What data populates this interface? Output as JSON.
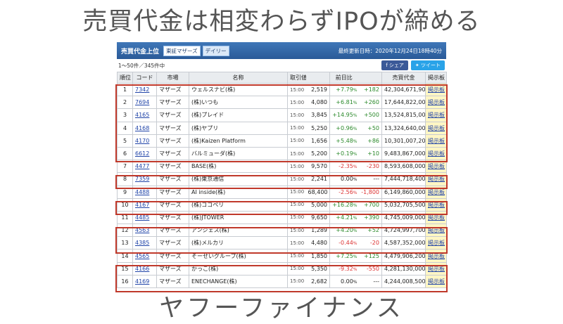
{
  "headline": "売買代金は相変わらずIPOが締める",
  "footer": "ヤフーファイナンス",
  "panel": {
    "title": "売買代金上位",
    "tabs": [
      "東証マザーズ",
      "デイリー"
    ],
    "updated": "最終更新日時：2020年12月24日18時40分",
    "count": "1～50件／345件中",
    "share_facebook": "シェア",
    "share_twitter": "ツイート"
  },
  "table": {
    "headers": [
      "順位",
      "コード",
      "市場",
      "名称",
      "取引値",
      "",
      "前日比",
      "",
      "売買代金",
      "掲示板"
    ],
    "rows": [
      {
        "rank": "1",
        "code": "7342",
        "market": "マザーズ",
        "name": "ウェルスナビ(株)",
        "time": "15:00",
        "price": "2,519",
        "pct": "+7.79",
        "diff": "+182",
        "value": "42,304,671,900",
        "board": "掲示板",
        "dir": "up"
      },
      {
        "rank": "2",
        "code": "7694",
        "market": "マザーズ",
        "name": "(株)いつも",
        "time": "15:00",
        "price": "4,080",
        "pct": "+6.81",
        "diff": "+260",
        "value": "17,644,822,000",
        "board": "掲示板",
        "dir": "up"
      },
      {
        "rank": "3",
        "code": "4165",
        "market": "マザーズ",
        "name": "(株)プレイド",
        "time": "15:00",
        "price": "3,845",
        "pct": "+14.95",
        "diff": "+500",
        "value": "13,524,815,000",
        "board": "掲示板",
        "dir": "up"
      },
      {
        "rank": "4",
        "code": "4168",
        "market": "マザーズ",
        "name": "(株)ヤプリ",
        "time": "15:00",
        "price": "5,250",
        "pct": "+0.96",
        "diff": "+50",
        "value": "13,324,640,000",
        "board": "掲示板",
        "dir": "up"
      },
      {
        "rank": "5",
        "code": "4170",
        "market": "マザーズ",
        "name": "(株)Kaizen Platform",
        "time": "15:00",
        "price": "1,656",
        "pct": "+5.48",
        "diff": "+86",
        "value": "10,301,007,200",
        "board": "掲示板",
        "dir": "up"
      },
      {
        "rank": "6",
        "code": "6612",
        "market": "マザーズ",
        "name": "バルミューダ(株)",
        "time": "15:00",
        "price": "5,200",
        "pct": "+0.19",
        "diff": "+10",
        "value": "9,483,867,000",
        "board": "掲示板",
        "dir": "up"
      },
      {
        "rank": "7",
        "code": "4477",
        "market": "マザーズ",
        "name": "BASE(株)",
        "time": "15:00",
        "price": "9,570",
        "pct": "-2.35",
        "diff": "-230",
        "value": "8,593,608,000",
        "board": "掲示板",
        "dir": "down"
      },
      {
        "rank": "8",
        "code": "7359",
        "market": "マザーズ",
        "name": "(株)東京通信",
        "time": "15:00",
        "price": "2,241",
        "pct": "0.00",
        "diff": "---",
        "value": "7,444,718,400",
        "board": "掲示板",
        "dir": "flat"
      },
      {
        "rank": "9",
        "code": "4488",
        "market": "マザーズ",
        "name": "AI inside(株)",
        "time": "15:00",
        "price": "68,400",
        "pct": "-2.56",
        "diff": "-1,800",
        "value": "6,149,860,000",
        "board": "掲示板",
        "dir": "down"
      },
      {
        "rank": "10",
        "code": "4167",
        "market": "マザーズ",
        "name": "(株)ココペリ",
        "time": "15:00",
        "price": "5,000",
        "pct": "+16.28",
        "diff": "+700",
        "value": "5,032,705,500",
        "board": "掲示板",
        "dir": "up"
      },
      {
        "rank": "11",
        "code": "4485",
        "market": "マザーズ",
        "name": "(株)JTOWER",
        "time": "15:00",
        "price": "9,650",
        "pct": "+4.21",
        "diff": "+390",
        "value": "4,745,009,000",
        "board": "掲示板",
        "dir": "up"
      },
      {
        "rank": "12",
        "code": "4563",
        "market": "マザーズ",
        "name": "アンジェス(株)",
        "time": "15:00",
        "price": "1,289",
        "pct": "+4.20",
        "diff": "+52",
        "value": "4,724,997,700",
        "board": "掲示板",
        "dir": "up"
      },
      {
        "rank": "13",
        "code": "4385",
        "market": "マザーズ",
        "name": "(株)メルカリ",
        "time": "15:00",
        "price": "4,480",
        "pct": "-0.44",
        "diff": "-20",
        "value": "4,587,352,000",
        "board": "掲示板",
        "dir": "down"
      },
      {
        "rank": "14",
        "code": "4565",
        "market": "マザーズ",
        "name": "そーせいグループ(株)",
        "time": "15:00",
        "price": "1,850",
        "pct": "+7.25",
        "diff": "+125",
        "value": "4,479,906,200",
        "board": "掲示板",
        "dir": "up"
      },
      {
        "rank": "15",
        "code": "4166",
        "market": "マザーズ",
        "name": "かっこ(株)",
        "time": "15:00",
        "price": "5,350",
        "pct": "-9.32",
        "diff": "-550",
        "value": "4,281,130,000",
        "board": "掲示板",
        "dir": "down"
      },
      {
        "rank": "16",
        "code": "4169",
        "market": "マザーズ",
        "name": "ENECHANGE(株)",
        "time": "15:00",
        "price": "2,682",
        "pct": "0.00",
        "diff": "---",
        "value": "4,244,008,500",
        "board": "掲示板",
        "dir": "flat"
      }
    ]
  }
}
